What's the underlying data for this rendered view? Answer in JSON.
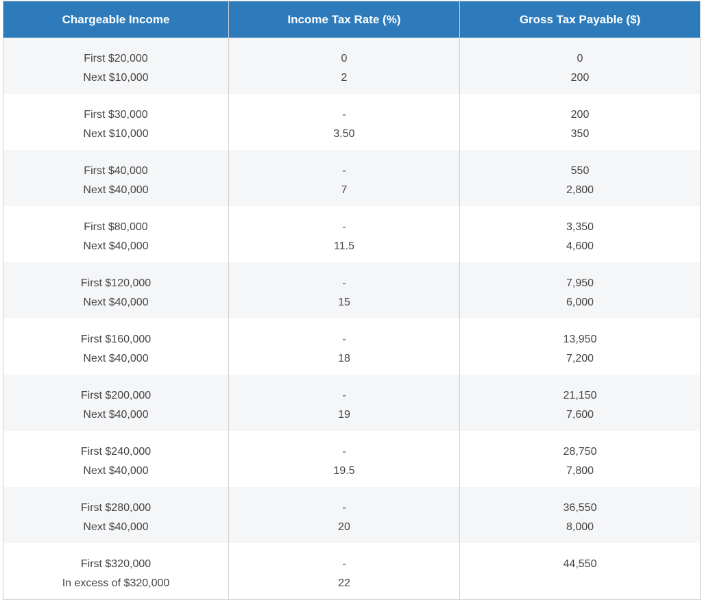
{
  "headers": [
    "Chargeable Income",
    "Income Tax Rate (%)",
    "Gross Tax Payable ($)"
  ],
  "rows": [
    {
      "income": [
        "First $20,000",
        "Next $10,000"
      ],
      "rate": [
        "0",
        "2"
      ],
      "tax": [
        "0",
        "200"
      ]
    },
    {
      "income": [
        "First $30,000",
        "Next $10,000"
      ],
      "rate": [
        "-",
        "3.50"
      ],
      "tax": [
        "200",
        "350"
      ]
    },
    {
      "income": [
        "First $40,000",
        "Next $40,000"
      ],
      "rate": [
        "-",
        "7"
      ],
      "tax": [
        "550",
        "2,800"
      ]
    },
    {
      "income": [
        "First $80,000",
        "Next $40,000"
      ],
      "rate": [
        "-",
        "11.5"
      ],
      "tax": [
        "3,350",
        "4,600"
      ]
    },
    {
      "income": [
        "First $120,000",
        "Next $40,000"
      ],
      "rate": [
        "-",
        "15"
      ],
      "tax": [
        "7,950",
        "6,000"
      ]
    },
    {
      "income": [
        "First $160,000",
        "Next $40,000"
      ],
      "rate": [
        "-",
        "18"
      ],
      "tax": [
        "13,950",
        "7,200"
      ]
    },
    {
      "income": [
        "First $200,000",
        "Next $40,000"
      ],
      "rate": [
        "-",
        "19"
      ],
      "tax": [
        "21,150",
        "7,600"
      ]
    },
    {
      "income": [
        "First $240,000",
        "Next $40,000"
      ],
      "rate": [
        "-",
        "19.5"
      ],
      "tax": [
        "28,750",
        "7,800"
      ]
    },
    {
      "income": [
        "First $280,000",
        "Next $40,000"
      ],
      "rate": [
        "-",
        "20"
      ],
      "tax": [
        "36,550",
        "8,000"
      ]
    },
    {
      "income": [
        "First $320,000",
        "In excess of $320,000"
      ],
      "rate": [
        "-",
        "22"
      ],
      "tax": [
        "44,550"
      ]
    }
  ],
  "colors": {
    "header_bg": "#2e7bbc",
    "stripe_bg": "#f5f6f8"
  }
}
